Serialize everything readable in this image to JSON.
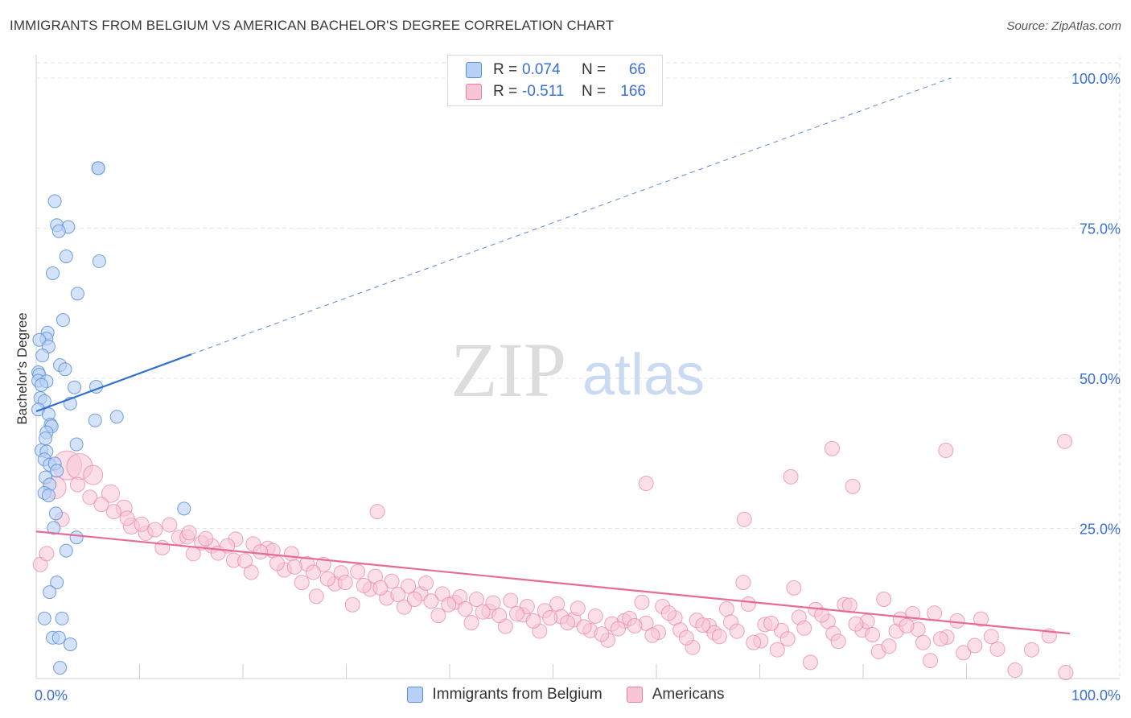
{
  "title": "IMMIGRANTS FROM BELGIUM VS AMERICAN BACHELOR'S DEGREE CORRELATION CHART",
  "source": "Source: ZipAtlas.com",
  "watermark": {
    "zip": "ZIP",
    "atlas": "atlas"
  },
  "colors": {
    "blue_fill": "#b8d0f5",
    "blue_stroke": "#5b8fd6",
    "blue_line": "#2f6fd0",
    "pink_fill": "#f8c5d5",
    "pink_stroke": "#e87fa2",
    "pink_line": "#e76b98",
    "value_text": "#3b6fd4",
    "grid": "#e6e6e6"
  },
  "legend": {
    "rows": [
      {
        "series": "Immigrants from Belgium",
        "r_label": "R =",
        "r_value": "0.074",
        "n_label": "N =",
        "n_value": "66"
      },
      {
        "series": "Americans",
        "r_label": "R =",
        "r_value": "-0.511",
        "n_label": "N =",
        "n_value": "166"
      }
    ]
  },
  "chart_data": {
    "type": "scatter",
    "title": "IMMIGRANTS FROM BELGIUM VS AMERICAN BACHELOR'S DEGREE CORRELATION CHART",
    "xlabel": "",
    "ylabel": "Bachelor's Degree",
    "xlim": [
      0,
      100
    ],
    "ylim": [
      0,
      100
    ],
    "x_tick_labels": [
      "0.0%",
      "100.0%"
    ],
    "y_tick_labels": [
      {
        "value": 25,
        "label": "25.0%"
      },
      {
        "value": 50,
        "label": "50.0%"
      },
      {
        "value": 75,
        "label": "75.0%"
      },
      {
        "value": 100,
        "label": "100.0%"
      }
    ],
    "legend_position": "bottom",
    "series": [
      {
        "name": "Immigrants from Belgium",
        "trend": {
          "x0": 0,
          "y0": 44.5,
          "x1": 15,
          "y1": 54.0,
          "dashed_to_x": 88.5,
          "dashed_to_y": 100
        },
        "points": [
          [
            6.0,
            85.0
          ],
          [
            6.0,
            85.0
          ],
          [
            1.8,
            79.5
          ],
          [
            2.0,
            75.5
          ],
          [
            3.1,
            75.2
          ],
          [
            2.2,
            74.5
          ],
          [
            2.9,
            70.3
          ],
          [
            6.1,
            69.5
          ],
          [
            1.6,
            67.5
          ],
          [
            4.0,
            64.1
          ],
          [
            2.6,
            59.7
          ],
          [
            1.1,
            57.6
          ],
          [
            1.0,
            56.6
          ],
          [
            0.3,
            56.4
          ],
          [
            1.2,
            55.3
          ],
          [
            0.6,
            53.8
          ],
          [
            2.3,
            52.2
          ],
          [
            2.8,
            51.5
          ],
          [
            0.2,
            51.0
          ],
          [
            0.3,
            50.6
          ],
          [
            0.2,
            49.6
          ],
          [
            1.0,
            49.5
          ],
          [
            0.5,
            48.9
          ],
          [
            5.8,
            48.6
          ],
          [
            3.7,
            48.5
          ],
          [
            0.4,
            46.7
          ],
          [
            0.8,
            46.2
          ],
          [
            3.3,
            45.8
          ],
          [
            0.2,
            44.8
          ],
          [
            1.2,
            44.0
          ],
          [
            5.7,
            43.0
          ],
          [
            7.8,
            43.6
          ],
          [
            1.4,
            42.3
          ],
          [
            1.5,
            42.0
          ],
          [
            1.0,
            41.0
          ],
          [
            0.9,
            40.0
          ],
          [
            3.9,
            39.0
          ],
          [
            0.5,
            38.0
          ],
          [
            1.0,
            37.8
          ],
          [
            0.8,
            36.5
          ],
          [
            1.3,
            35.6
          ],
          [
            1.8,
            35.8
          ],
          [
            2.0,
            34.6
          ],
          [
            0.9,
            33.5
          ],
          [
            1.3,
            32.3
          ],
          [
            0.8,
            30.9
          ],
          [
            1.2,
            30.5
          ],
          [
            14.3,
            28.3
          ],
          [
            1.9,
            27.5
          ],
          [
            1.7,
            25.1
          ],
          [
            3.9,
            23.5
          ],
          [
            2.9,
            21.3
          ],
          [
            2.0,
            16.0
          ],
          [
            1.3,
            14.4
          ],
          [
            0.8,
            10.0
          ],
          [
            2.5,
            10.0
          ],
          [
            1.6,
            6.8
          ],
          [
            2.2,
            6.8
          ],
          [
            3.3,
            5.7
          ],
          [
            2.3,
            1.8
          ]
        ]
      },
      {
        "name": "Americans",
        "trend": {
          "x0": 0,
          "y0": 24.5,
          "x1": 100,
          "y1": 7.5
        },
        "points": [
          [
            3.0,
            35.5,
            18
          ],
          [
            4.2,
            35.3,
            16
          ],
          [
            1.8,
            31.8,
            14
          ],
          [
            5.5,
            33.9,
            12
          ],
          [
            7.2,
            30.8,
            11
          ],
          [
            8.5,
            28.4,
            10
          ],
          [
            9.2,
            25.4,
            10
          ],
          [
            10.6,
            24.2,
            9
          ],
          [
            12.2,
            21.8,
            9
          ],
          [
            13.8,
            23.5,
            9
          ],
          [
            15.2,
            20.8,
            9
          ],
          [
            17.0,
            22.1,
            9
          ],
          [
            19.1,
            19.7,
            9
          ],
          [
            20.8,
            17.7,
            9
          ],
          [
            22.4,
            21.7,
            9
          ],
          [
            24.0,
            18.1,
            9
          ],
          [
            25.7,
            16.0,
            9
          ],
          [
            27.1,
            13.7,
            9
          ],
          [
            28.9,
            15.8,
            9
          ],
          [
            30.6,
            12.3,
            9
          ],
          [
            32.3,
            14.9,
            9
          ],
          [
            33.9,
            13.4,
            9
          ],
          [
            35.6,
            11.9,
            9
          ],
          [
            37.2,
            14.1,
            9
          ],
          [
            38.9,
            10.5,
            9
          ],
          [
            40.5,
            12.7,
            9
          ],
          [
            42.1,
            9.3,
            9
          ],
          [
            43.8,
            11.2,
            9
          ],
          [
            45.4,
            8.7,
            9
          ],
          [
            47.1,
            10.6,
            9
          ],
          [
            48.7,
            7.9,
            9
          ],
          [
            50.4,
            12.4,
            9
          ],
          [
            52.0,
            9.8,
            9
          ],
          [
            53.6,
            8.0,
            9
          ],
          [
            55.3,
            6.4,
            9
          ],
          [
            56.9,
            9.6,
            9
          ],
          [
            58.6,
            12.7,
            9
          ],
          [
            60.2,
            7.7,
            9
          ],
          [
            61.8,
            10.1,
            9
          ],
          [
            63.5,
            5.2,
            9
          ],
          [
            65.1,
            8.8,
            9
          ],
          [
            66.8,
            11.6,
            9
          ],
          [
            68.4,
            16.0,
            9
          ],
          [
            70.1,
            6.3,
            9
          ],
          [
            71.7,
            4.8,
            9
          ],
          [
            73.3,
            15.1,
            9
          ],
          [
            74.9,
            2.7,
            9
          ],
          [
            76.6,
            9.5,
            9
          ],
          [
            78.2,
            12.3,
            9
          ],
          [
            79.9,
            8.1,
            9
          ],
          [
            81.5,
            4.5,
            9
          ],
          [
            83.2,
            7.9,
            9
          ],
          [
            84.8,
            10.8,
            9
          ],
          [
            86.5,
            3.0,
            9
          ],
          [
            88.1,
            6.9,
            9
          ],
          [
            89.7,
            4.3,
            9
          ],
          [
            91.4,
            9.9,
            9
          ],
          [
            93.0,
            4.9,
            9
          ],
          [
            94.7,
            1.4,
            9
          ],
          [
            96.3,
            4.8,
            9
          ],
          [
            98.0,
            7.1,
            9
          ],
          [
            99.6,
            1.0,
            9
          ],
          [
            99.5,
            39.5,
            9
          ],
          [
            88.0,
            38.0,
            9
          ],
          [
            77.0,
            38.3,
            9
          ],
          [
            79.0,
            32.0,
            9
          ],
          [
            73.0,
            33.6,
            9
          ],
          [
            59.0,
            32.5,
            9
          ],
          [
            68.5,
            26.5,
            9
          ],
          [
            33.0,
            27.8,
            9
          ],
          [
            0.4,
            19.0,
            9
          ],
          [
            1.0,
            20.8,
            9
          ],
          [
            2.5,
            26.5,
            9
          ],
          [
            4.0,
            32.3,
            9
          ],
          [
            5.2,
            30.2,
            9
          ],
          [
            6.3,
            29.0,
            9
          ],
          [
            7.5,
            27.8,
            9
          ],
          [
            8.8,
            26.7,
            9
          ],
          [
            10.2,
            25.7,
            9
          ],
          [
            11.5,
            24.8,
            9
          ],
          [
            12.9,
            25.6,
            9
          ],
          [
            14.6,
            23.6,
            9
          ],
          [
            16.0,
            22.6,
            9
          ],
          [
            17.6,
            20.9,
            9
          ],
          [
            19.3,
            23.2,
            9
          ],
          [
            21.0,
            22.4,
            9
          ],
          [
            22.9,
            21.3,
            9
          ],
          [
            24.7,
            20.8,
            9
          ],
          [
            26.2,
            19.1,
            9
          ],
          [
            27.8,
            19.0,
            9
          ],
          [
            29.5,
            17.6,
            9
          ],
          [
            31.1,
            17.8,
            9
          ],
          [
            32.8,
            17.0,
            9
          ],
          [
            34.4,
            16.2,
            9
          ],
          [
            36.0,
            15.4,
            9
          ],
          [
            37.7,
            15.9,
            9
          ],
          [
            39.3,
            14.1,
            9
          ],
          [
            41.0,
            13.6,
            9
          ],
          [
            42.6,
            13.2,
            9
          ],
          [
            44.2,
            12.6,
            9
          ],
          [
            45.9,
            13.0,
            9
          ],
          [
            47.5,
            12.0,
            9
          ],
          [
            49.2,
            11.3,
            9
          ],
          [
            50.8,
            10.3,
            9
          ],
          [
            52.4,
            11.7,
            9
          ],
          [
            54.1,
            10.4,
            9
          ],
          [
            55.7,
            9.1,
            9
          ],
          [
            57.4,
            10.0,
            9
          ],
          [
            59.0,
            9.2,
            9
          ],
          [
            60.6,
            12.0,
            9
          ],
          [
            62.3,
            8.1,
            9
          ],
          [
            63.9,
            9.7,
            9
          ],
          [
            65.6,
            7.6,
            9
          ],
          [
            67.2,
            9.4,
            9
          ],
          [
            68.9,
            12.4,
            9
          ],
          [
            70.5,
            9.0,
            9
          ],
          [
            72.1,
            8.0,
            9
          ],
          [
            73.8,
            10.2,
            9
          ],
          [
            75.4,
            11.5,
            9
          ],
          [
            77.1,
            7.5,
            9
          ],
          [
            78.7,
            12.2,
            9
          ],
          [
            80.4,
            9.5,
            9
          ],
          [
            82.0,
            13.2,
            9
          ],
          [
            83.6,
            9.9,
            9
          ],
          [
            85.3,
            8.2,
            9
          ],
          [
            86.9,
            10.9,
            9
          ],
          [
            14.8,
            24.3,
            9
          ],
          [
            16.4,
            23.3,
            9
          ],
          [
            18.5,
            22.1,
            9
          ],
          [
            20.2,
            19.6,
            9
          ],
          [
            21.7,
            21.1,
            9
          ],
          [
            23.3,
            19.2,
            9
          ],
          [
            25.0,
            18.6,
            9
          ],
          [
            26.8,
            17.7,
            9
          ],
          [
            28.2,
            16.6,
            9
          ],
          [
            29.9,
            16.0,
            9
          ],
          [
            31.7,
            15.5,
            9
          ],
          [
            33.3,
            15.1,
            9
          ],
          [
            35.0,
            14.0,
            9
          ],
          [
            36.6,
            13.2,
            9
          ],
          [
            38.2,
            12.9,
            9
          ],
          [
            39.9,
            12.3,
            9
          ],
          [
            41.5,
            11.6,
            9
          ],
          [
            43.2,
            11.1,
            9
          ],
          [
            44.8,
            10.5,
            9
          ],
          [
            46.5,
            10.8,
            9
          ],
          [
            48.1,
            9.6,
            9
          ],
          [
            49.7,
            10.1,
            9
          ],
          [
            51.4,
            9.3,
            9
          ],
          [
            53.0,
            8.6,
            9
          ],
          [
            54.7,
            7.4,
            9
          ],
          [
            56.3,
            8.3,
            9
          ],
          [
            57.9,
            8.8,
            9
          ],
          [
            59.6,
            7.2,
            9
          ],
          [
            61.2,
            10.9,
            9
          ],
          [
            62.9,
            6.8,
            9
          ],
          [
            64.5,
            8.9,
            9
          ],
          [
            66.1,
            7.0,
            9
          ],
          [
            67.8,
            7.9,
            9
          ],
          [
            69.4,
            6.0,
            9
          ],
          [
            71.1,
            9.2,
            9
          ],
          [
            72.7,
            6.6,
            9
          ],
          [
            74.3,
            8.4,
            9
          ],
          [
            76.0,
            10.6,
            9
          ],
          [
            77.6,
            6.2,
            9
          ],
          [
            79.3,
            9.1,
            9
          ],
          [
            80.9,
            7.3,
            9
          ],
          [
            82.5,
            5.4,
            9
          ],
          [
            84.2,
            8.8,
            9
          ],
          [
            85.8,
            6.0,
            9
          ],
          [
            87.5,
            6.6,
            9
          ],
          [
            89.1,
            9.6,
            9
          ],
          [
            90.8,
            5.5,
            9
          ],
          [
            92.4,
            7.0,
            9
          ]
        ]
      }
    ]
  }
}
